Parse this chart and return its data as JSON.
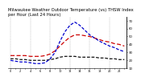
{
  "title": "Milwaukee Weather Outdoor Temperature (vs) THSW Index per Hour (Last 24 Hours)",
  "title_fontsize": 3.8,
  "background_color": "#ffffff",
  "grid_color": "#999999",
  "hours": [
    0,
    1,
    2,
    3,
    4,
    5,
    6,
    7,
    8,
    9,
    10,
    11,
    12,
    13,
    14,
    15,
    16,
    17,
    18,
    19,
    20,
    21,
    22,
    23
  ],
  "outdoor_temp": [
    26,
    26,
    26,
    26,
    25,
    25,
    25,
    26,
    28,
    32,
    38,
    44,
    49,
    52,
    52,
    51,
    50,
    48,
    46,
    44,
    43,
    41,
    40,
    38
  ],
  "thsw_index": [
    20,
    19,
    18,
    18,
    17,
    16,
    16,
    17,
    22,
    30,
    44,
    56,
    64,
    68,
    64,
    58,
    52,
    48,
    44,
    41,
    38,
    36,
    33,
    31
  ],
  "dew_point": [
    22,
    22,
    21,
    21,
    20,
    20,
    20,
    20,
    21,
    22,
    24,
    25,
    25,
    25,
    24,
    24,
    24,
    24,
    23,
    23,
    22,
    22,
    21,
    21
  ],
  "temp_color": "#cc0000",
  "thsw_color": "#0000cc",
  "dew_color": "#111111",
  "ylim": [
    10,
    75
  ],
  "ytick_labels": [
    "7.",
    "6.",
    "5.",
    "4.",
    "3.",
    "2.",
    "1."
  ],
  "yticks": [
    70,
    60,
    50,
    40,
    30,
    20,
    10
  ],
  "line_width": 0.9,
  "tick_label_size": 2.8,
  "xlabel_fontsize": 2.5,
  "grid_every": 4,
  "temp_dash": [
    4,
    2
  ],
  "thsw_dash": [
    3,
    1.5
  ],
  "dew_dash": [
    3,
    1.5
  ]
}
